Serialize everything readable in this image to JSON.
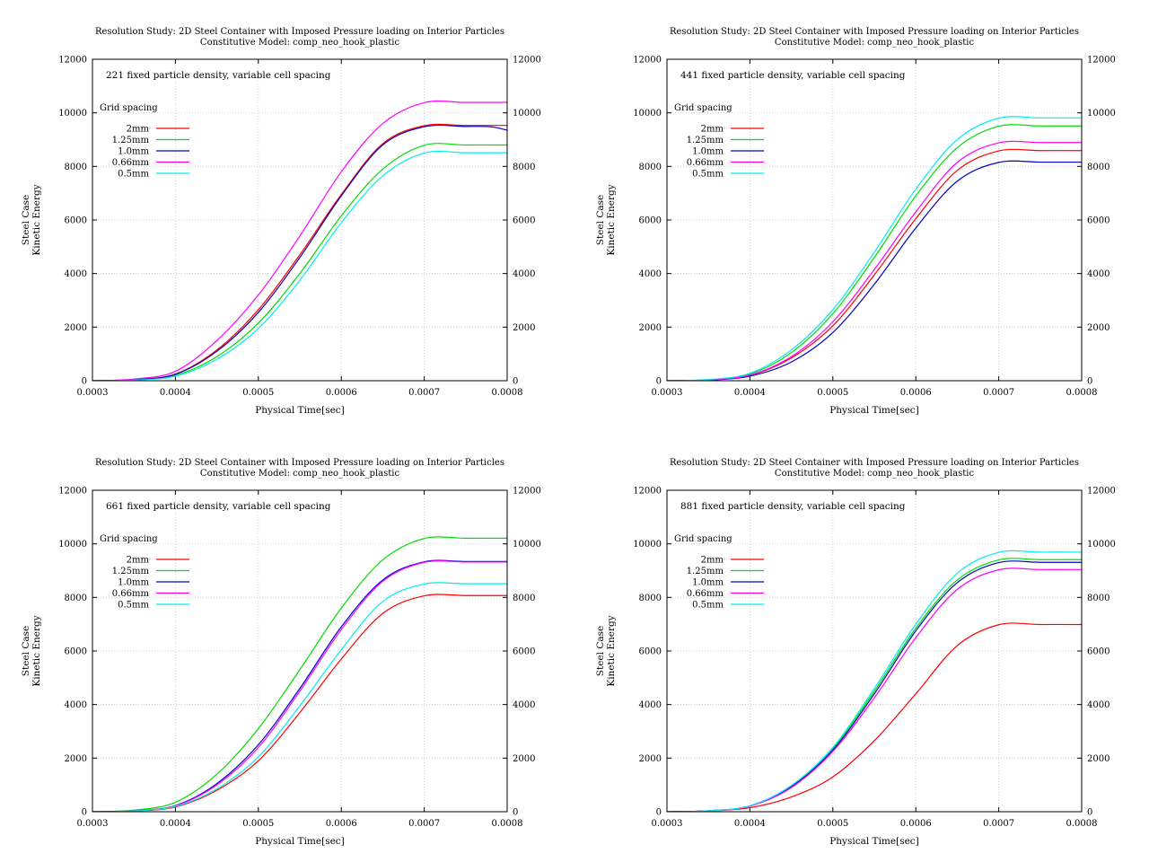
{
  "chart_data": [
    {
      "type": "line",
      "title": "Resolution Study: 2D Steel Container with Imposed Pressure loading on Interior Particles",
      "subtitle": "Constitutive Model: comp_neo_hook_plastic",
      "annotation": "221 fixed particle density, variable cell spacing",
      "legend_title": "Grid spacing",
      "legend_placement": "top-left",
      "xlabel": "Physical Time[sec]",
      "ylabel": [
        "Steel Case",
        "Kinetic Energy"
      ],
      "xlim": [
        0.0003,
        0.0008
      ],
      "ylim": [
        0,
        12000
      ],
      "x_ticks": [
        "0.0003",
        "0.0004",
        "0.0005",
        "0.0006",
        "0.0007",
        "0.0008"
      ],
      "y_ticks": [
        "0",
        "2000",
        "4000",
        "6000",
        "8000",
        "10000",
        "12000"
      ],
      "grid": true,
      "series": [
        {
          "name": "2mm",
          "color": "#ff0000",
          "x": [
            0.0003,
            0.00035,
            0.0004,
            0.00045,
            0.0005,
            0.00055,
            0.0006,
            0.00065,
            0.0007,
            0.00075,
            0.0008
          ],
          "values": [
            0,
            40,
            250,
            1150,
            2650,
            4700,
            6950,
            8850,
            9520,
            9530,
            9530
          ]
        },
        {
          "name": "1.25mm",
          "color": "#00dd00",
          "x": [
            0.0003,
            0.00035,
            0.0004,
            0.00045,
            0.0005,
            0.00055,
            0.0006,
            0.00065,
            0.0007,
            0.00075,
            0.0008
          ],
          "values": [
            0,
            30,
            200,
            900,
            2150,
            4000,
            6150,
            7900,
            8790,
            8800,
            8800
          ]
        },
        {
          "name": "1.0mm",
          "color": "#0000cc",
          "x": [
            0.0003,
            0.00035,
            0.0004,
            0.00045,
            0.0005,
            0.00055,
            0.0006,
            0.00065,
            0.0007,
            0.00075,
            0.00078,
            0.0008
          ],
          "values": [
            0,
            40,
            240,
            1100,
            2550,
            4600,
            6900,
            8800,
            9480,
            9490,
            9480,
            9350
          ]
        },
        {
          "name": "0.66mm",
          "color": "#ff00ff",
          "x": [
            0.0003,
            0.00035,
            0.0004,
            0.00045,
            0.0005,
            0.00055,
            0.0006,
            0.00065,
            0.0007,
            0.00075,
            0.0008
          ],
          "values": [
            0,
            60,
            350,
            1500,
            3200,
            5400,
            7800,
            9600,
            10380,
            10390,
            10390
          ]
        },
        {
          "name": "0.5mm",
          "color": "#00eeee",
          "x": [
            0.0003,
            0.00035,
            0.0004,
            0.00045,
            0.0005,
            0.00055,
            0.0006,
            0.00065,
            0.0007,
            0.00075,
            0.0008
          ],
          "values": [
            0,
            25,
            170,
            800,
            1950,
            3750,
            5900,
            7650,
            8500,
            8510,
            8510
          ]
        }
      ]
    },
    {
      "type": "line",
      "title": "Resolution Study: 2D Steel Container with Imposed Pressure loading on Interior Particles",
      "subtitle": "Constitutive Model: comp_neo_hook_plastic",
      "annotation": "441 fixed particle density, variable cell spacing",
      "legend_title": "Grid spacing",
      "legend_placement": "top-left",
      "xlabel": "Physical Time[sec]",
      "ylabel": [
        "Steel Case",
        "Kinetic Energy"
      ],
      "xlim": [
        0.0003,
        0.0008
      ],
      "ylim": [
        0,
        12000
      ],
      "x_ticks": [
        "0.0003",
        "0.0004",
        "0.0005",
        "0.0006",
        "0.0007",
        "0.0008"
      ],
      "y_ticks": [
        "0",
        "2000",
        "4000",
        "6000",
        "8000",
        "10000",
        "12000"
      ],
      "grid": true,
      "series": [
        {
          "name": "2mm",
          "color": "#ff0000",
          "x": [
            0.0003,
            0.00035,
            0.0004,
            0.00045,
            0.0005,
            0.00055,
            0.0006,
            0.00065,
            0.0007,
            0.00075,
            0.0008
          ],
          "values": [
            0,
            30,
            200,
            850,
            2050,
            3950,
            6050,
            7850,
            8580,
            8590,
            8590
          ]
        },
        {
          "name": "1.25mm",
          "color": "#00dd00",
          "x": [
            0.0003,
            0.00035,
            0.0004,
            0.00045,
            0.0005,
            0.00055,
            0.0006,
            0.00065,
            0.0007,
            0.00075,
            0.0008
          ],
          "values": [
            0,
            40,
            250,
            1050,
            2500,
            4600,
            6900,
            8700,
            9500,
            9510,
            9510
          ]
        },
        {
          "name": "1.0mm",
          "color": "#0000cc",
          "x": [
            0.0003,
            0.00035,
            0.0004,
            0.00045,
            0.0005,
            0.00055,
            0.0006,
            0.00065,
            0.0007,
            0.00075,
            0.0008
          ],
          "values": [
            0,
            25,
            170,
            700,
            1800,
            3600,
            5700,
            7450,
            8150,
            8160,
            8160
          ]
        },
        {
          "name": "0.66mm",
          "color": "#ff00ff",
          "x": [
            0.0003,
            0.00035,
            0.0004,
            0.00045,
            0.0005,
            0.00055,
            0.0006,
            0.00065,
            0.0007,
            0.00075,
            0.0008
          ],
          "values": [
            0,
            30,
            210,
            900,
            2200,
            4150,
            6300,
            8150,
            8880,
            8890,
            8890
          ]
        },
        {
          "name": "0.5mm",
          "color": "#00eeee",
          "x": [
            0.0003,
            0.00035,
            0.0004,
            0.00045,
            0.0005,
            0.00055,
            0.0006,
            0.00065,
            0.0007,
            0.00075,
            0.0008
          ],
          "values": [
            0,
            45,
            280,
            1150,
            2650,
            4800,
            7150,
            9000,
            9800,
            9810,
            9810
          ]
        }
      ]
    },
    {
      "type": "line",
      "title": "Resolution Study: 2D Steel Container with Imposed Pressure loading on Interior Particles",
      "subtitle": "Constitutive Model: comp_neo_hook_plastic",
      "annotation": "661 fixed particle density, variable cell spacing",
      "legend_title": "Grid spacing",
      "legend_placement": "top-left",
      "xlabel": "Physical Time[sec]",
      "ylabel": [
        "Steel Case",
        "Kinetic Energy"
      ],
      "xlim": [
        0.0003,
        0.0008
      ],
      "ylim": [
        0,
        12000
      ],
      "x_ticks": [
        "0.0003",
        "0.0004",
        "0.0005",
        "0.0006",
        "0.0007",
        "0.0008"
      ],
      "y_ticks": [
        "0",
        "2000",
        "4000",
        "6000",
        "8000",
        "10000",
        "12000"
      ],
      "grid": true,
      "series": [
        {
          "name": "2mm",
          "color": "#ff0000",
          "x": [
            0.0003,
            0.00035,
            0.0004,
            0.00045,
            0.0005,
            0.00055,
            0.0006,
            0.00065,
            0.0007,
            0.00075,
            0.0008
          ],
          "values": [
            0,
            25,
            180,
            800,
            1900,
            3700,
            5700,
            7400,
            8060,
            8070,
            8070
          ]
        },
        {
          "name": "1.25mm",
          "color": "#00dd00",
          "x": [
            0.0003,
            0.00035,
            0.0004,
            0.00045,
            0.0005,
            0.00055,
            0.0006,
            0.00065,
            0.0007,
            0.00075,
            0.0008
          ],
          "values": [
            0,
            60,
            350,
            1400,
            3100,
            5300,
            7600,
            9400,
            10200,
            10210,
            10210
          ]
        },
        {
          "name": "1.0mm",
          "color": "#0000cc",
          "x": [
            0.0003,
            0.00035,
            0.0004,
            0.00045,
            0.0005,
            0.00055,
            0.0006,
            0.00065,
            0.0007,
            0.00075,
            0.0008
          ],
          "values": [
            0,
            35,
            230,
            1050,
            2500,
            4600,
            6900,
            8650,
            9330,
            9340,
            9340
          ]
        },
        {
          "name": "0.66mm",
          "color": "#ff00ff",
          "x": [
            0.0003,
            0.00035,
            0.0004,
            0.00045,
            0.0005,
            0.00055,
            0.0006,
            0.00065,
            0.0007,
            0.00075,
            0.0008
          ],
          "values": [
            0,
            35,
            220,
            1000,
            2400,
            4500,
            6800,
            8600,
            9310,
            9320,
            9320
          ]
        },
        {
          "name": "0.5mm",
          "color": "#00eeee",
          "x": [
            0.0003,
            0.00035,
            0.0004,
            0.00045,
            0.0005,
            0.00055,
            0.0006,
            0.00065,
            0.0007,
            0.00075,
            0.0008
          ],
          "values": [
            0,
            30,
            200,
            850,
            2050,
            3950,
            6050,
            7850,
            8500,
            8510,
            8510
          ]
        }
      ]
    },
    {
      "type": "line",
      "title": "Resolution Study: 2D Steel Container with Imposed Pressure loading on Interior Particles",
      "subtitle": "Constitutive Model: comp_neo_hook_plastic",
      "annotation": "881 fixed particle density, variable cell spacing",
      "legend_title": "Grid spacing",
      "legend_placement": "top-left",
      "xlabel": "Physical Time[sec]",
      "ylabel": [
        "Steel Case",
        "Kinetic Energy"
      ],
      "xlim": [
        0.0003,
        0.0008
      ],
      "ylim": [
        0,
        12000
      ],
      "x_ticks": [
        "0.0003",
        "0.0004",
        "0.0005",
        "0.0006",
        "0.0007",
        "0.0008"
      ],
      "y_ticks": [
        "0",
        "2000",
        "4000",
        "6000",
        "8000",
        "10000",
        "12000"
      ],
      "grid": true,
      "series": [
        {
          "name": "2mm",
          "color": "#ff0000",
          "x": [
            0.0003,
            0.00035,
            0.0004,
            0.00045,
            0.0005,
            0.00055,
            0.0006,
            0.00065,
            0.0007,
            0.00075,
            0.0008
          ],
          "values": [
            0,
            30,
            150,
            550,
            1300,
            2650,
            4400,
            6200,
            6980,
            6990,
            6990
          ]
        },
        {
          "name": "1.25mm",
          "color": "#00dd00",
          "x": [
            0.0003,
            0.00035,
            0.0004,
            0.00045,
            0.0005,
            0.00055,
            0.0006,
            0.00065,
            0.0007,
            0.00075,
            0.0008
          ],
          "values": [
            0,
            35,
            220,
            950,
            2350,
            4500,
            6850,
            8650,
            9400,
            9410,
            9410
          ]
        },
        {
          "name": "1.0mm",
          "color": "#0000cc",
          "x": [
            0.0003,
            0.00035,
            0.0004,
            0.00045,
            0.0005,
            0.00055,
            0.0006,
            0.00065,
            0.0007,
            0.00075,
            0.0008
          ],
          "values": [
            0,
            35,
            215,
            930,
            2300,
            4400,
            6750,
            8550,
            9300,
            9310,
            9310
          ]
        },
        {
          "name": "0.66mm",
          "color": "#ff00ff",
          "x": [
            0.0003,
            0.00035,
            0.0004,
            0.00045,
            0.0005,
            0.00055,
            0.0006,
            0.00065,
            0.0007,
            0.00075,
            0.0008
          ],
          "values": [
            0,
            35,
            210,
            900,
            2250,
            4250,
            6500,
            8300,
            9030,
            9040,
            9040
          ]
        },
        {
          "name": "0.5mm",
          "color": "#00eeee",
          "x": [
            0.0003,
            0.00035,
            0.0004,
            0.00045,
            0.0005,
            0.00055,
            0.0006,
            0.00065,
            0.0007,
            0.00075,
            0.0008
          ],
          "values": [
            0,
            35,
            225,
            980,
            2400,
            4600,
            7000,
            8900,
            9680,
            9690,
            9690
          ]
        }
      ]
    }
  ]
}
